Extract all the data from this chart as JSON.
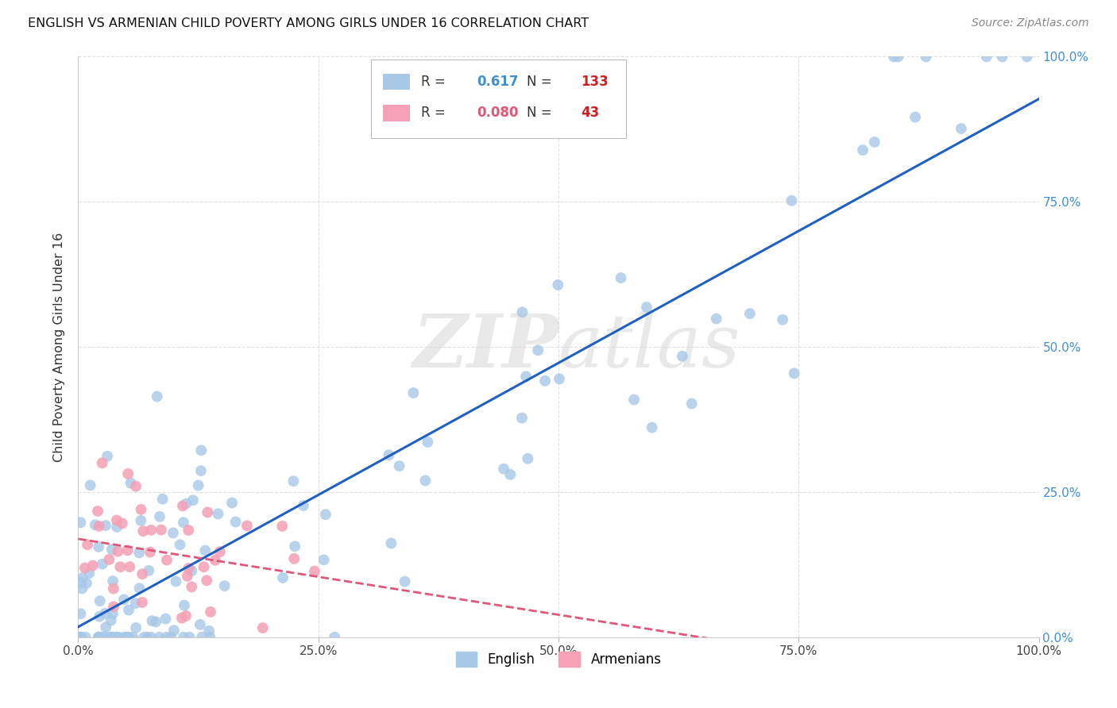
{
  "title": "ENGLISH VS ARMENIAN CHILD POVERTY AMONG GIRLS UNDER 16 CORRELATION CHART",
  "source": "Source: ZipAtlas.com",
  "ylabel": "Child Poverty Among Girls Under 16",
  "english_R": 0.617,
  "english_N": 133,
  "armenian_R": 0.08,
  "armenian_N": 43,
  "english_color": "#A8C8E8",
  "armenian_color": "#F4A0B5",
  "english_line_color": "#2060C0",
  "armenian_line_color": "#E05878",
  "watermark_color": "#D8D8D8",
  "background_color": "#ffffff",
  "grid_color": "#E0E0E0",
  "right_tick_color": "#4090D0",
  "eng_line_start_y": 0.0,
  "eng_line_end_y": 0.82,
  "arm_line_start_y": 0.14,
  "arm_line_end_y": 0.2,
  "x_ticks": [
    0.0,
    0.25,
    0.5,
    0.75,
    1.0
  ],
  "x_tick_labels": [
    "0.0%",
    "25.0%",
    "50.0%",
    "75.0%",
    "100.0%"
  ],
  "y_ticks": [
    0.0,
    0.25,
    0.5,
    0.75,
    1.0
  ],
  "y_tick_labels": [
    "0.0%",
    "25.0%",
    "50.0%",
    "75.0%",
    "100.0%"
  ]
}
